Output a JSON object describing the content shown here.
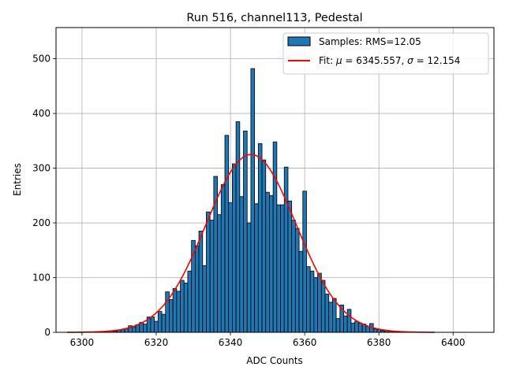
{
  "chart_data": {
    "type": "bar",
    "title": "Run 516, channel113, Pedestal",
    "xlabel": "ADC Counts",
    "ylabel": "Entries",
    "xlim": [
      6293,
      6411
    ],
    "ylim": [
      0,
      557
    ],
    "xticks": [
      6300,
      6320,
      6340,
      6360,
      6380,
      6400
    ],
    "yticks": [
      0,
      100,
      200,
      300,
      400,
      500
    ],
    "grid": true,
    "legend_position": "top-right",
    "legend": {
      "samples_label": "Samples: RMS=12.05",
      "fit_label_prefix": "Fit: ",
      "fit_mu_symbol": "μ",
      "fit_mu_text": " = 6345.557, ",
      "fit_sigma_symbol": "σ",
      "fit_sigma_text": " = 12.154"
    },
    "histogram": {
      "name": "Samples",
      "color": "#1f77b4",
      "edge_color": "#000000",
      "bin_width": 1,
      "bins": [
        [
          6301,
          1
        ],
        [
          6302,
          0
        ],
        [
          6303,
          0
        ],
        [
          6304,
          0
        ],
        [
          6305,
          1
        ],
        [
          6306,
          1
        ],
        [
          6307,
          2
        ],
        [
          6308,
          3
        ],
        [
          6309,
          2
        ],
        [
          6310,
          4
        ],
        [
          6311,
          5
        ],
        [
          6312,
          7
        ],
        [
          6313,
          12
        ],
        [
          6314,
          10
        ],
        [
          6315,
          14
        ],
        [
          6316,
          18
        ],
        [
          6317,
          15
        ],
        [
          6318,
          28
        ],
        [
          6319,
          28
        ],
        [
          6320,
          20
        ],
        [
          6321,
          38
        ],
        [
          6322,
          33
        ],
        [
          6323,
          74
        ],
        [
          6324,
          60
        ],
        [
          6325,
          80
        ],
        [
          6326,
          75
        ],
        [
          6327,
          95
        ],
        [
          6328,
          90
        ],
        [
          6329,
          112
        ],
        [
          6330,
          168
        ],
        [
          6331,
          158
        ],
        [
          6332,
          185
        ],
        [
          6333,
          122
        ],
        [
          6334,
          220
        ],
        [
          6335,
          205
        ],
        [
          6336,
          285
        ],
        [
          6337,
          215
        ],
        [
          6338,
          270
        ],
        [
          6339,
          360
        ],
        [
          6340,
          237
        ],
        [
          6341,
          308
        ],
        [
          6342,
          385
        ],
        [
          6343,
          248
        ],
        [
          6344,
          368
        ],
        [
          6345,
          200
        ],
        [
          6346,
          482
        ],
        [
          6347,
          235
        ],
        [
          6348,
          345
        ],
        [
          6349,
          315
        ],
        [
          6350,
          256
        ],
        [
          6351,
          250
        ],
        [
          6352,
          348
        ],
        [
          6353,
          233
        ],
        [
          6354,
          233
        ],
        [
          6355,
          302
        ],
        [
          6356,
          240
        ],
        [
          6357,
          205
        ],
        [
          6358,
          190
        ],
        [
          6359,
          148
        ],
        [
          6360,
          258
        ],
        [
          6361,
          120
        ],
        [
          6362,
          112
        ],
        [
          6363,
          100
        ],
        [
          6364,
          108
        ],
        [
          6365,
          95
        ],
        [
          6366,
          70
        ],
        [
          6367,
          55
        ],
        [
          6368,
          62
        ],
        [
          6369,
          25
        ],
        [
          6370,
          50
        ],
        [
          6371,
          30
        ],
        [
          6372,
          42
        ],
        [
          6373,
          17
        ],
        [
          6374,
          20
        ],
        [
          6375,
          17
        ],
        [
          6376,
          15
        ],
        [
          6377,
          11
        ],
        [
          6378,
          16
        ],
        [
          6379,
          6
        ],
        [
          6380,
          5
        ],
        [
          6381,
          3
        ],
        [
          6382,
          3
        ],
        [
          6383,
          2
        ],
        [
          6384,
          1
        ],
        [
          6385,
          1
        ],
        [
          6386,
          1
        ]
      ]
    },
    "fit": {
      "name": "Fit",
      "color": "#ff0000",
      "mu": 6345.557,
      "sigma": 12.154,
      "amplitude": 325,
      "x_range": [
        6296,
        6395
      ]
    }
  }
}
